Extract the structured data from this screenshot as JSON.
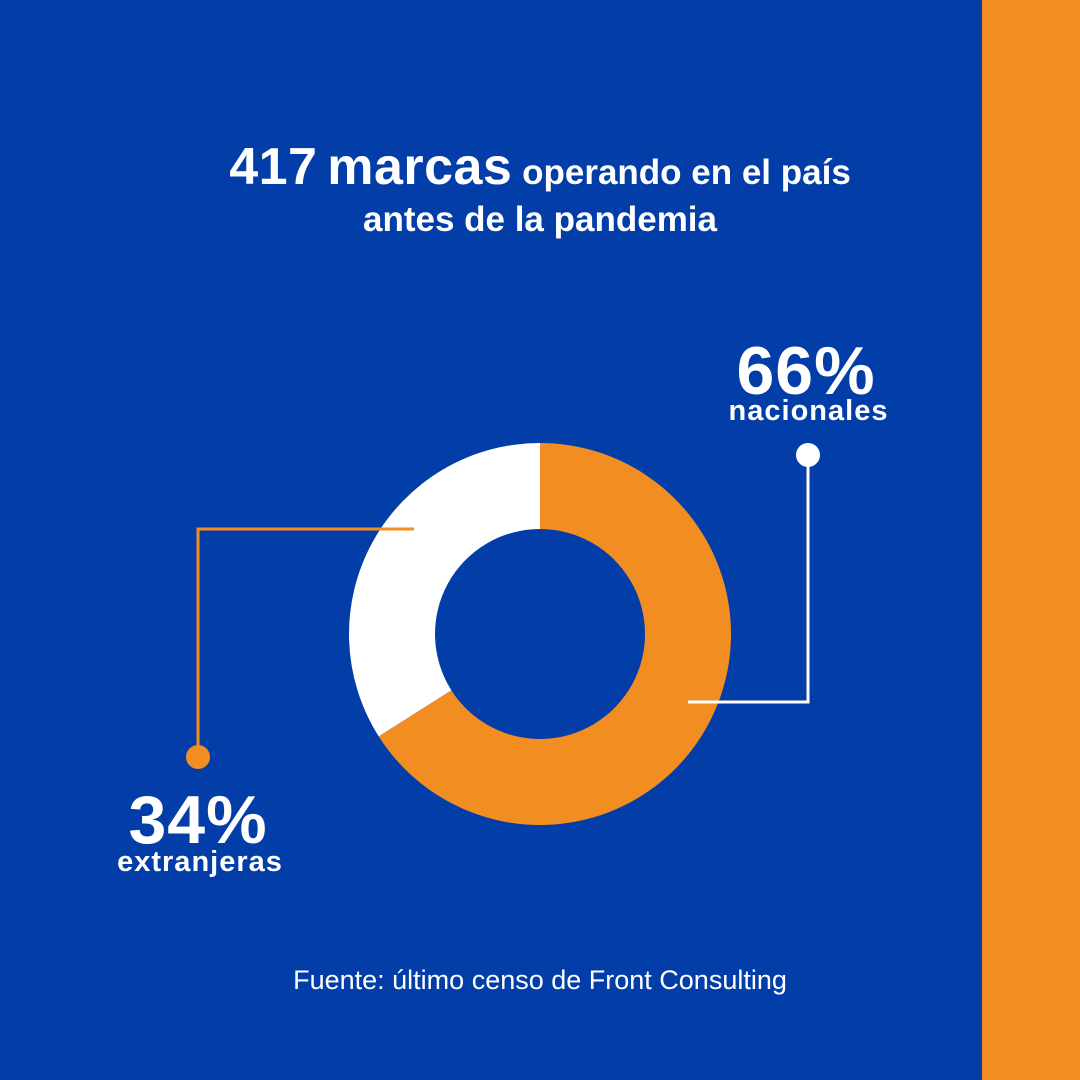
{
  "colors": {
    "background": "#033ea8",
    "accent": "#f28d22",
    "white": "#ffffff"
  },
  "headline": {
    "number": "417",
    "bold_word": "marcas",
    "rest_line1": "operando en el país",
    "line2": "antes de la pandemia"
  },
  "source": "Fuente: último censo de Front Consulting",
  "chart_data": {
    "type": "pie",
    "style": "donut",
    "title": "417 marcas operando en el país antes de la pandemia",
    "total": 417,
    "slices": [
      {
        "name": "nacionales",
        "value": 66,
        "label": "66%",
        "color": "#f28d22"
      },
      {
        "name": "extranjeras",
        "value": 34,
        "label": "34%",
        "color": "#ffffff"
      }
    ],
    "start_angle": "12 o'clock",
    "direction": "clockwise"
  }
}
